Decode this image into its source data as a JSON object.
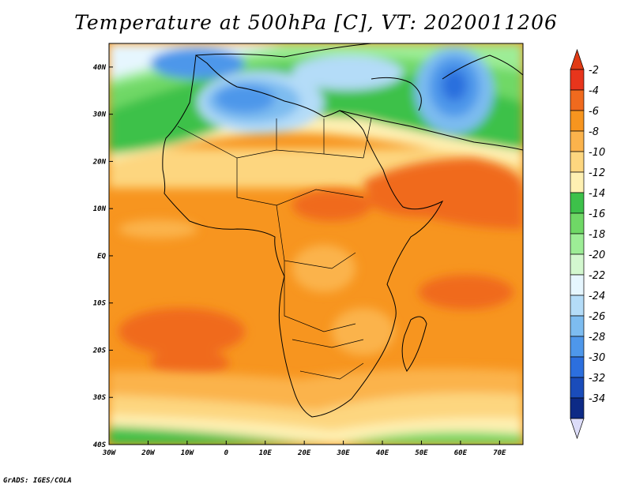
{
  "title": "Temperature at 500hPa [C], VT: 2020011206",
  "credit": "GrADS: IGES/COLA",
  "map": {
    "lon_range": [
      -30,
      76
    ],
    "lat_range": [
      -40,
      45
    ],
    "lon_ticks": [
      {
        "lon": -30,
        "label": "30W"
      },
      {
        "lon": -20,
        "label": "20W"
      },
      {
        "lon": -10,
        "label": "10W"
      },
      {
        "lon": 0,
        "label": "0"
      },
      {
        "lon": 10,
        "label": "10E"
      },
      {
        "lon": 20,
        "label": "20E"
      },
      {
        "lon": 30,
        "label": "30E"
      },
      {
        "lon": 40,
        "label": "40E"
      },
      {
        "lon": 50,
        "label": "50E"
      },
      {
        "lon": 60,
        "label": "60E"
      },
      {
        "lon": 70,
        "label": "70E"
      }
    ],
    "lat_ticks": [
      {
        "lat": 40,
        "label": "40N"
      },
      {
        "lat": 30,
        "label": "30N"
      },
      {
        "lat": 20,
        "label": "20N"
      },
      {
        "lat": 10,
        "label": "10N"
      },
      {
        "lat": 0,
        "label": "EQ"
      },
      {
        "lat": -10,
        "label": "10S"
      },
      {
        "lat": -20,
        "label": "20S"
      },
      {
        "lat": -30,
        "label": "30S"
      },
      {
        "lat": -40,
        "label": "40S"
      }
    ]
  },
  "colorbar": {
    "levels": [
      {
        "color": "#e8351c",
        "label": "-2"
      },
      {
        "color": "#f06a1e",
        "label": "-4"
      },
      {
        "color": "#f7951f",
        "label": "-6"
      },
      {
        "color": "#fbb34c",
        "label": "-8"
      },
      {
        "color": "#fdd67f",
        "label": "-10"
      },
      {
        "color": "#fef0b2",
        "label": "-12"
      },
      {
        "color": "#3dc14a",
        "label": "-14"
      },
      {
        "color": "#6fd866",
        "label": "-16"
      },
      {
        "color": "#9ded96",
        "label": "-18"
      },
      {
        "color": "#d3f8cf",
        "label": "-20"
      },
      {
        "color": "#e6f6fe",
        "label": "-22"
      },
      {
        "color": "#b4dcf8",
        "label": "-24"
      },
      {
        "color": "#7dbcf0",
        "label": "-26"
      },
      {
        "color": "#4e97ea",
        "label": "-28"
      },
      {
        "color": "#2c6fde",
        "label": "-30"
      },
      {
        "color": "#1a4cba",
        "label": "-32"
      },
      {
        "color": "#0d2a86",
        "label": "-34"
      }
    ],
    "top_triangle_color": "#e03a14",
    "bottom_triangle_color": "#dcdcf8"
  }
}
